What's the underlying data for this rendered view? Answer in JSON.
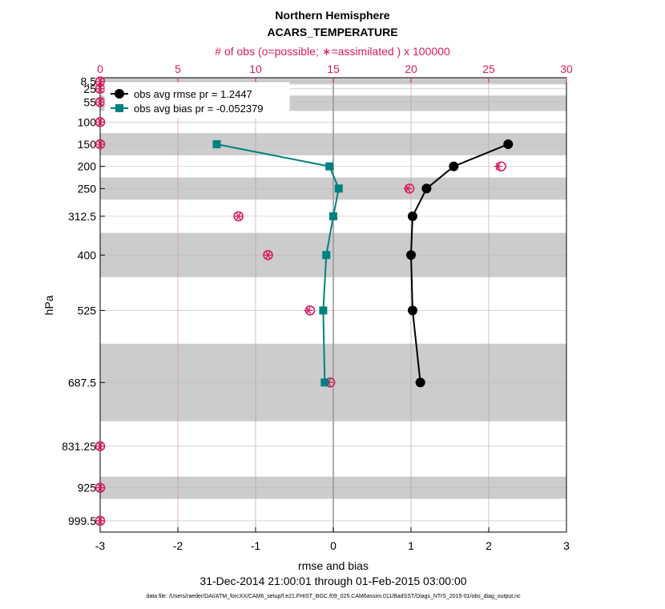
{
  "chart_data": {
    "type": "line",
    "title": "Northern Hemisphere",
    "subtitle": "ACARS_TEMPERATURE",
    "top_axis_label": "# of obs (o=possible; ∗=assimilated ) x 100000",
    "xlabel": "rmse and bias",
    "ylabel": "hPa",
    "date_range": "31-Dec-2014 21:00:01 through 01-Feb-2015 03:00:00",
    "file_note": "data file: /Users/raeder/DAI/ATM_forcXX/CAM6_setup/f.e21.FHIST_BGC.f09_025.CAM6assim.011/BadSST/Diags_NTrS_2015-01/obs_diag_output.nc",
    "xlim": [
      -3,
      3
    ],
    "x_ticks": [
      -3,
      -2,
      -1,
      0,
      1,
      2,
      3
    ],
    "top_xlim": [
      0,
      30
    ],
    "top_ticks": [
      0,
      5,
      10,
      15,
      20,
      25,
      30
    ],
    "y_ticks": [
      {
        "value": 8.5,
        "label": "8.5"
      },
      {
        "value": 25,
        "label": "25"
      },
      {
        "value": 55,
        "label": "55"
      },
      {
        "value": 100,
        "label": "100"
      },
      {
        "value": 150,
        "label": "150"
      },
      {
        "value": 200,
        "label": "200"
      },
      {
        "value": 250,
        "label": "250"
      },
      {
        "value": 312.5,
        "label": "312.5"
      },
      {
        "value": 400,
        "label": "400"
      },
      {
        "value": 525,
        "label": "525"
      },
      {
        "value": 687.5,
        "label": "687.5"
      },
      {
        "value": 831.25,
        "label": "831.25"
      },
      {
        "value": 925,
        "label": "925"
      },
      {
        "value": 999.5,
        "label": "999.5"
      }
    ],
    "shaded_bands": [
      [
        0,
        15
      ],
      [
        40,
        75
      ],
      [
        125,
        175
      ],
      [
        225,
        275
      ],
      [
        350,
        450
      ],
      [
        600,
        775
      ],
      [
        900,
        950
      ]
    ],
    "series": [
      {
        "name": "obs avg rmse pr = 1.2447",
        "color": "#000000",
        "marker": "circle",
        "x": [
          2.25,
          1.55,
          1.2,
          1.02,
          1.0,
          1.02,
          1.12
        ],
        "y": [
          150,
          200,
          250,
          312.5,
          400,
          525,
          687.5
        ]
      },
      {
        "name": "obs avg bias pr = -0.052379",
        "color": "#008080",
        "marker": "square",
        "x": [
          -1.5,
          -0.05,
          0.07,
          0.0,
          -0.09,
          -0.13,
          -0.11
        ],
        "y": [
          150,
          200,
          250,
          312.5,
          400,
          525,
          687.5
        ]
      }
    ],
    "obs_counts": {
      "color": "#d81b60",
      "possible": [
        {
          "y": 8.5,
          "x": 0
        },
        {
          "y": 25,
          "x": 0
        },
        {
          "y": 55,
          "x": 0
        },
        {
          "y": 100,
          "x": 0
        },
        {
          "y": 150,
          "x": 0
        },
        {
          "y": 200,
          "x": 25.8
        },
        {
          "y": 250,
          "x": 19.9
        },
        {
          "y": 312.5,
          "x": 8.9
        },
        {
          "y": 400,
          "x": 10.8
        },
        {
          "y": 525,
          "x": 13.5
        },
        {
          "y": 687.5,
          "x": 14.8
        },
        {
          "y": 831.25,
          "x": 0
        },
        {
          "y": 925,
          "x": 0
        },
        {
          "y": 999.5,
          "x": 0
        }
      ],
      "assimilated": [
        {
          "y": 8.5,
          "x": 0
        },
        {
          "y": 25,
          "x": 0
        },
        {
          "y": 55,
          "x": 0
        },
        {
          "y": 100,
          "x": 0
        },
        {
          "y": 150,
          "x": 0
        },
        {
          "y": 200,
          "x": 25.6
        },
        {
          "y": 250,
          "x": 19.8
        },
        {
          "y": 312.5,
          "x": 8.9
        },
        {
          "y": 400,
          "x": 10.8
        },
        {
          "y": 525,
          "x": 13.4
        },
        {
          "y": 687.5,
          "x": 14.7
        },
        {
          "y": 831.25,
          "x": 0
        },
        {
          "y": 925,
          "x": 0
        },
        {
          "y": 999.5,
          "x": 0
        }
      ]
    },
    "legend_position": "top-left",
    "grid": true
  }
}
